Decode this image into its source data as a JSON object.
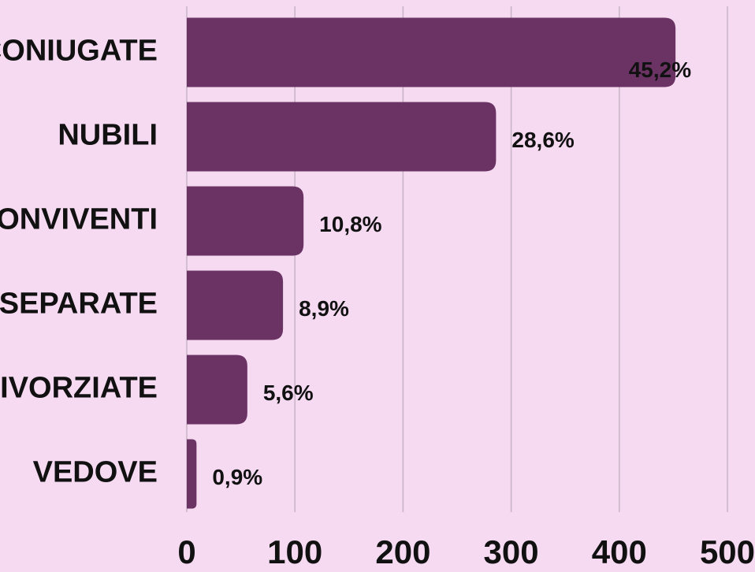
{
  "chart_data": {
    "type": "bar",
    "orientation": "horizontal",
    "categories": [
      "CONIUGATE",
      "NUBILI",
      "CONVIVENTI",
      "SEPARATE",
      "DIVORZIATE",
      "VEDOVE"
    ],
    "values": [
      452,
      286,
      108,
      89,
      56,
      9
    ],
    "value_labels": [
      "45,2%",
      "28,6%",
      "10,8%",
      "8,9%",
      "5,6%",
      "0,9%"
    ],
    "color": "#6a3363",
    "xlim": [
      0,
      500
    ],
    "xticks": [
      0,
      100,
      200,
      300,
      400,
      500
    ],
    "grid": true
  }
}
